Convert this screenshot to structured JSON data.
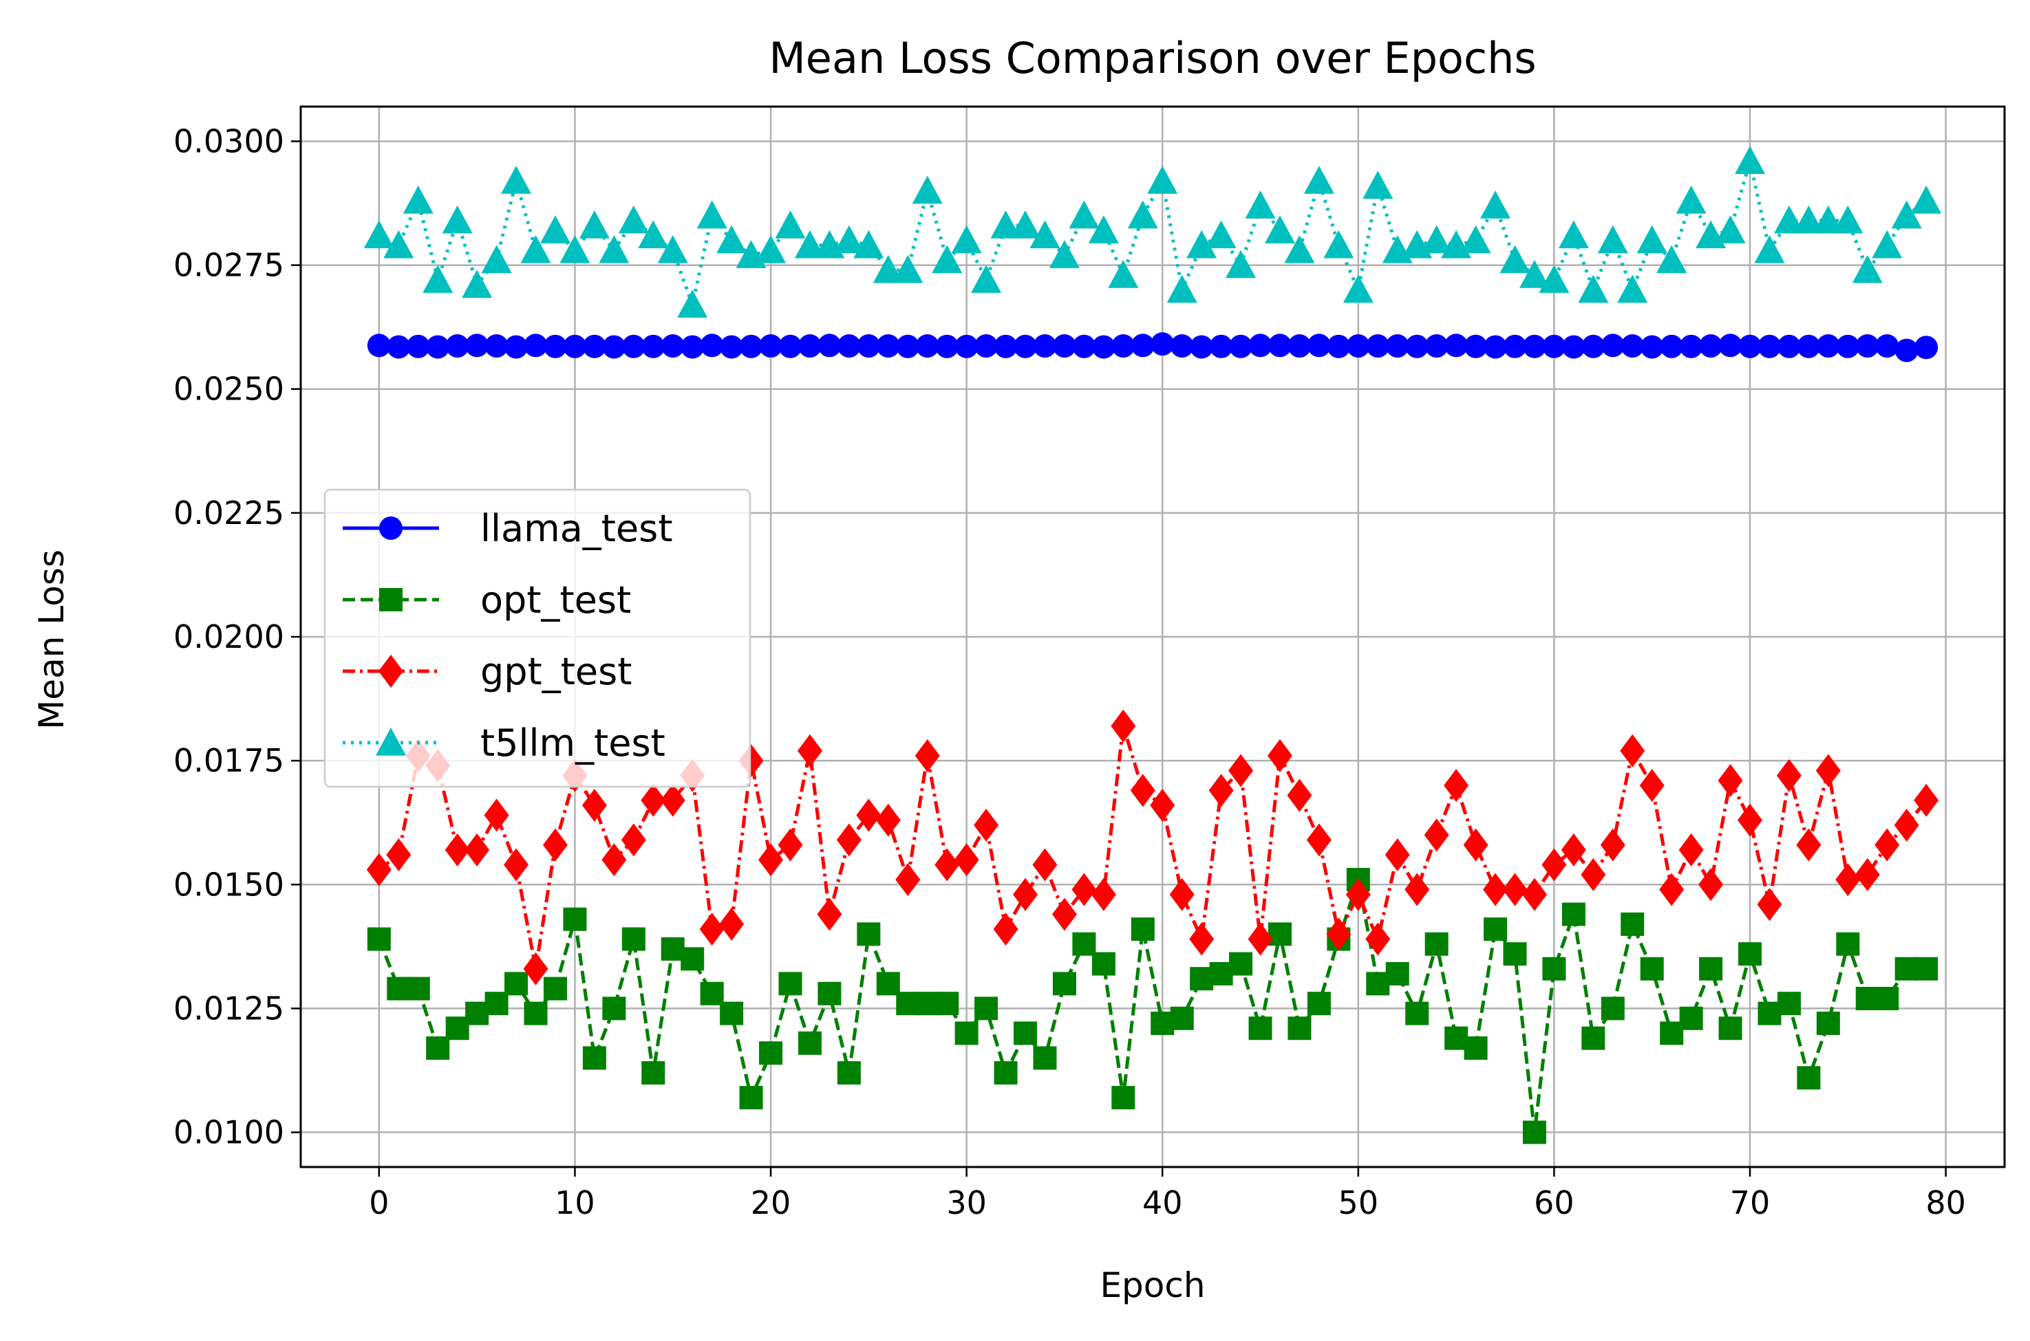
{
  "chart_data": {
    "type": "line",
    "title": "Mean Loss Comparison over Epochs",
    "xlabel": "Epoch",
    "ylabel": "Mean Loss",
    "xlim": [
      -4,
      83
    ],
    "ylim": [
      0.0093,
      0.0307
    ],
    "xticks": [
      0,
      10,
      20,
      30,
      40,
      50,
      60,
      70,
      80
    ],
    "xtick_labels": [
      "0",
      "10",
      "20",
      "30",
      "40",
      "50",
      "60",
      "70",
      "80"
    ],
    "yticks": [
      0.01,
      0.0125,
      0.015,
      0.0175,
      0.02,
      0.0225,
      0.025,
      0.0275,
      0.03
    ],
    "ytick_labels": [
      "0.0100",
      "0.0125",
      "0.0150",
      "0.0175",
      "0.0200",
      "0.0225",
      "0.0250",
      "0.0275",
      "0.0300"
    ],
    "grid": true,
    "legend_position": "center-left",
    "x": [
      0,
      1,
      2,
      3,
      4,
      5,
      6,
      7,
      8,
      9,
      10,
      11,
      12,
      13,
      14,
      15,
      16,
      17,
      18,
      19,
      20,
      21,
      22,
      23,
      24,
      25,
      26,
      27,
      28,
      29,
      30,
      31,
      32,
      33,
      34,
      35,
      36,
      37,
      38,
      39,
      40,
      41,
      42,
      43,
      44,
      45,
      46,
      47,
      48,
      49,
      50,
      51,
      52,
      53,
      54,
      55,
      56,
      57,
      58,
      59,
      60,
      61,
      62,
      63,
      64,
      65,
      66,
      67,
      68,
      69,
      70,
      71,
      72,
      73,
      74,
      75,
      76,
      77,
      78,
      79
    ],
    "series": [
      {
        "name": "llama_test",
        "color": "#0000ff",
        "line_style": "solid",
        "marker": "circle",
        "values": [
          0.02588,
          0.02585,
          0.02586,
          0.02585,
          0.02587,
          0.02588,
          0.02587,
          0.02585,
          0.02588,
          0.02586,
          0.02586,
          0.02586,
          0.02585,
          0.02586,
          0.02586,
          0.02587,
          0.02585,
          0.02588,
          0.02585,
          0.02586,
          0.02587,
          0.02586,
          0.02587,
          0.02588,
          0.02587,
          0.02587,
          0.02587,
          0.02586,
          0.02587,
          0.02586,
          0.02586,
          0.02587,
          0.02586,
          0.02586,
          0.02587,
          0.02587,
          0.02586,
          0.02585,
          0.02587,
          0.02588,
          0.02591,
          0.02587,
          0.02585,
          0.02586,
          0.02586,
          0.02588,
          0.02588,
          0.02587,
          0.02588,
          0.02586,
          0.02587,
          0.02587,
          0.02587,
          0.02586,
          0.02587,
          0.02588,
          0.02586,
          0.02585,
          0.02586,
          0.02586,
          0.02586,
          0.02585,
          0.02586,
          0.02588,
          0.02587,
          0.02585,
          0.02586,
          0.02586,
          0.02587,
          0.02588,
          0.02586,
          0.02586,
          0.02586,
          0.02586,
          0.02587,
          0.02586,
          0.02587,
          0.02587,
          0.02578,
          0.02584
        ]
      },
      {
        "name": "opt_test",
        "color": "#008000",
        "line_style": "dashed",
        "marker": "square",
        "values": [
          0.0139,
          0.0129,
          0.0129,
          0.0117,
          0.0121,
          0.0124,
          0.0126,
          0.013,
          0.0124,
          0.0129,
          0.0143,
          0.0115,
          0.0125,
          0.0139,
          0.0112,
          0.0137,
          0.0135,
          0.0128,
          0.0124,
          0.0107,
          0.0116,
          0.013,
          0.0118,
          0.0128,
          0.0112,
          0.014,
          0.013,
          0.0126,
          0.0126,
          0.0126,
          0.012,
          0.0125,
          0.0112,
          0.012,
          0.0115,
          0.013,
          0.0138,
          0.0134,
          0.0107,
          0.0141,
          0.0122,
          0.0123,
          0.0131,
          0.0132,
          0.0134,
          0.0121,
          0.014,
          0.0121,
          0.0126,
          0.0139,
          0.0151,
          0.013,
          0.0132,
          0.0124,
          0.0138,
          0.0119,
          0.0117,
          0.0141,
          0.0136,
          0.01,
          0.0133,
          0.0144,
          0.0119,
          0.0125,
          0.0142,
          0.0133,
          0.012,
          0.0123,
          0.0133,
          0.0121,
          0.0136,
          0.0124,
          0.0126,
          0.0111,
          0.0122,
          0.0138,
          0.0127,
          0.0127,
          0.0133,
          0.0133
        ]
      },
      {
        "name": "gpt_test",
        "color": "#ff0000",
        "line_style": "dashdot",
        "marker": "diamond",
        "values": [
          0.0153,
          0.0156,
          0.0176,
          0.0174,
          0.0157,
          0.0157,
          0.0164,
          0.0154,
          0.0133,
          0.0158,
          0.0172,
          0.0166,
          0.0155,
          0.0159,
          0.0167,
          0.0167,
          0.0172,
          0.0141,
          0.0142,
          0.0175,
          0.0155,
          0.0158,
          0.0177,
          0.0144,
          0.0159,
          0.0164,
          0.0163,
          0.0151,
          0.0176,
          0.0154,
          0.0155,
          0.0162,
          0.0141,
          0.0148,
          0.0154,
          0.0144,
          0.0149,
          0.0148,
          0.0182,
          0.0169,
          0.0166,
          0.0148,
          0.0139,
          0.0169,
          0.0173,
          0.0139,
          0.0176,
          0.0168,
          0.0159,
          0.014,
          0.0148,
          0.0139,
          0.0156,
          0.0149,
          0.016,
          0.017,
          0.0158,
          0.0149,
          0.0149,
          0.0148,
          0.0154,
          0.0157,
          0.0152,
          0.0158,
          0.0177,
          0.017,
          0.0149,
          0.0157,
          0.015,
          0.0171,
          0.0163,
          0.0146,
          0.0172,
          0.0158,
          0.0173,
          0.0151,
          0.0152,
          0.0158,
          0.0162,
          0.0167
        ]
      },
      {
        "name": "t5llm_test",
        "color": "#00bfbf",
        "line_style": "dotted",
        "marker": "triangle",
        "values": [
          0.0281,
          0.0279,
          0.0288,
          0.0272,
          0.0284,
          0.0271,
          0.0276,
          0.0292,
          0.0278,
          0.0282,
          0.0278,
          0.0283,
          0.0278,
          0.0284,
          0.0281,
          0.0278,
          0.0267,
          0.0285,
          0.028,
          0.0277,
          0.0278,
          0.0283,
          0.0279,
          0.0279,
          0.028,
          0.0279,
          0.0274,
          0.0274,
          0.029,
          0.0276,
          0.028,
          0.0272,
          0.0283,
          0.0283,
          0.0281,
          0.0277,
          0.0285,
          0.0282,
          0.0273,
          0.0285,
          0.0292,
          0.027,
          0.0279,
          0.0281,
          0.0275,
          0.0287,
          0.0282,
          0.0278,
          0.0292,
          0.0279,
          0.027,
          0.0291,
          0.0278,
          0.0279,
          0.028,
          0.0279,
          0.028,
          0.0287,
          0.0276,
          0.0273,
          0.0272,
          0.0281,
          0.027,
          0.028,
          0.027,
          0.028,
          0.0276,
          0.0288,
          0.0281,
          0.0282,
          0.0296,
          0.0278,
          0.0284,
          0.0284,
          0.0284,
          0.0284,
          0.0274,
          0.0279,
          0.0285,
          0.0288
        ]
      }
    ]
  }
}
